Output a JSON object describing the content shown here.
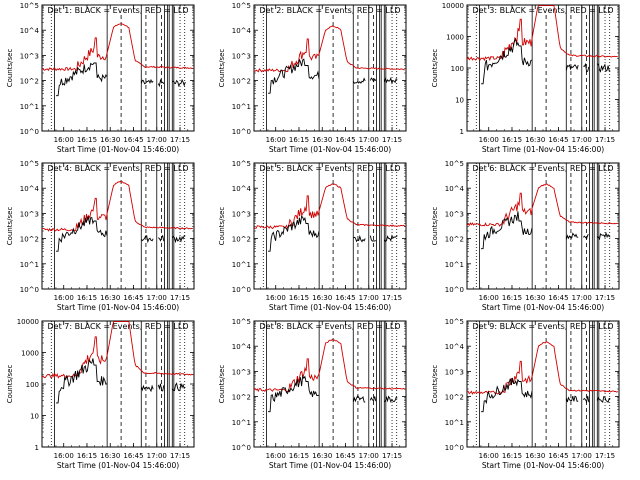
{
  "chart_data": [
    {
      "type": "line",
      "title": "Det 1: BLACK = Events, RED = LLD",
      "ylabel": "Counts/sec",
      "xlabel": "Start Time (01-Nov-04 15:46:00)",
      "x_ticks": [
        "16:00",
        "16:15",
        "16:30",
        "16:45",
        "17:00",
        "17:15"
      ],
      "y_ticks": [
        "10^0",
        "10^1",
        "10^2",
        "10^3",
        "10^4",
        "10^5"
      ],
      "y_log_range": [
        0,
        5
      ],
      "red_base": 2.5,
      "red_peak": 4.1,
      "black_base": 1.9,
      "black_peak": 2.6,
      "series": [
        {
          "name": "Events",
          "color": "#000000"
        },
        {
          "name": "LLD",
          "color": "#d00000"
        }
      ]
    },
    {
      "type": "line",
      "title": "Det 2: BLACK = Events, RED = LLD",
      "ylabel": "Counts/sec",
      "xlabel": "Start Time (01-Nov-04 15:46:00)",
      "x_ticks": [
        "16:00",
        "16:15",
        "16:30",
        "16:45",
        "17:00",
        "17:15"
      ],
      "y_ticks": [
        "10^0",
        "10^1",
        "10^2",
        "10^3",
        "10^4",
        "10^5"
      ],
      "y_log_range": [
        0,
        5
      ],
      "red_base": 2.45,
      "red_peak": 4.0,
      "black_base": 2.0,
      "black_peak": 2.5,
      "series": [
        {
          "name": "Events",
          "color": "#000000"
        },
        {
          "name": "LLD",
          "color": "#d00000"
        }
      ]
    },
    {
      "type": "line",
      "title": "Det 3: BLACK = Events, RED = LLD",
      "ylabel": "Counts/sec",
      "xlabel": "Start Time (01-Nov-04 15:46:00)",
      "x_ticks": [
        "16:00",
        "16:15",
        "16:30",
        "16:45",
        "17:00",
        "17:15"
      ],
      "y_ticks": [
        "1",
        "10",
        "100",
        "1000",
        "10000"
      ],
      "y_log_range": [
        0,
        4
      ],
      "red_base": 2.35,
      "red_peak": 4.05,
      "black_base": 2.0,
      "black_peak": 2.6,
      "series": [
        {
          "name": "Events",
          "color": "#000000"
        },
        {
          "name": "LLD",
          "color": "#d00000"
        }
      ]
    },
    {
      "type": "line",
      "title": "Det 4: BLACK = Events, RED = LLD",
      "ylabel": "Counts/sec",
      "xlabel": "Start Time (01-Nov-04 15:46:00)",
      "x_ticks": [
        "16:00",
        "16:15",
        "16:30",
        "16:45",
        "17:00",
        "17:15"
      ],
      "y_ticks": [
        "10^0",
        "10^1",
        "10^2",
        "10^3",
        "10^4",
        "10^5"
      ],
      "y_log_range": [
        0,
        5
      ],
      "red_base": 2.4,
      "red_peak": 4.1,
      "black_base": 2.0,
      "black_peak": 2.6,
      "series": [
        {
          "name": "Events",
          "color": "#000000"
        },
        {
          "name": "LLD",
          "color": "#d00000"
        }
      ]
    },
    {
      "type": "line",
      "title": "Det 5: BLACK = Events, RED = LLD",
      "ylabel": "Counts/sec",
      "xlabel": "Start Time (01-Nov-04 15:46:00)",
      "x_ticks": [
        "16:00",
        "16:15",
        "16:30",
        "16:45",
        "17:00",
        "17:15"
      ],
      "y_ticks": [
        "10^0",
        "10^1",
        "10^2",
        "10^3",
        "10^4",
        "10^5"
      ],
      "y_log_range": [
        0,
        5
      ],
      "red_base": 2.5,
      "red_peak": 4.0,
      "black_base": 2.0,
      "black_peak": 2.5,
      "series": [
        {
          "name": "Events",
          "color": "#000000"
        },
        {
          "name": "LLD",
          "color": "#d00000"
        }
      ]
    },
    {
      "type": "line",
      "title": "Det 6: BLACK = Events, RED = LLD",
      "ylabel": "Counts/sec",
      "xlabel": "Start Time (01-Nov-04 15:46:00)",
      "x_ticks": [
        "16:00",
        "16:15",
        "16:30",
        "16:45",
        "17:00",
        "17:15"
      ],
      "y_ticks": [
        "10^0",
        "10^1",
        "10^2",
        "10^3",
        "10^4",
        "10^5"
      ],
      "y_log_range": [
        0,
        5
      ],
      "red_base": 2.6,
      "red_peak": 4.0,
      "black_base": 2.1,
      "black_peak": 2.6,
      "series": [
        {
          "name": "Events",
          "color": "#000000"
        },
        {
          "name": "LLD",
          "color": "#d00000"
        }
      ]
    },
    {
      "type": "line",
      "title": "Det 7: BLACK = Events, RED = LLD",
      "ylabel": "Counts/sec",
      "xlabel": "Start Time (01-Nov-04 15:46:00)",
      "x_ticks": [
        "16:00",
        "16:15",
        "16:30",
        "16:45",
        "17:00",
        "17:15"
      ],
      "y_ticks": [
        "1",
        "10",
        "100",
        "1000",
        "10000"
      ],
      "y_log_range": [
        0,
        4
      ],
      "red_base": 2.3,
      "red_peak": 4.0,
      "black_base": 1.9,
      "black_peak": 2.5,
      "series": [
        {
          "name": "Events",
          "color": "#000000"
        },
        {
          "name": "LLD",
          "color": "#d00000"
        }
      ]
    },
    {
      "type": "line",
      "title": "Det 8: BLACK = Events, RED = LLD",
      "ylabel": "Counts/sec",
      "xlabel": "Start Time (01-Nov-04 15:46:00)",
      "x_ticks": [
        "16:00",
        "16:15",
        "16:30",
        "16:45",
        "17:00",
        "17:15"
      ],
      "y_ticks": [
        "10^0",
        "10^1",
        "10^2",
        "10^3",
        "10^4",
        "10^5"
      ],
      "y_log_range": [
        0,
        5
      ],
      "red_base": 2.3,
      "red_peak": 4.1,
      "black_base": 1.9,
      "black_peak": 2.5,
      "series": [
        {
          "name": "Events",
          "color": "#000000"
        },
        {
          "name": "LLD",
          "color": "#d00000"
        }
      ]
    },
    {
      "type": "line",
      "title": "Det 9: BLACK = Events, RED = LLD",
      "ylabel": "Counts/sec",
      "xlabel": "Start Time (01-Nov-04 15:46:00)",
      "x_ticks": [
        "16:00",
        "16:15",
        "16:30",
        "16:45",
        "17:00",
        "17:15"
      ],
      "y_ticks": [
        "10^0",
        "10^1",
        "10^2",
        "10^3",
        "10^4",
        "10^5"
      ],
      "y_log_range": [
        0,
        5
      ],
      "red_base": 2.2,
      "red_peak": 4.0,
      "black_base": 1.9,
      "black_peak": 2.5,
      "series": [
        {
          "name": "Events",
          "color": "#000000"
        },
        {
          "name": "LLD",
          "color": "#d00000"
        }
      ]
    }
  ]
}
